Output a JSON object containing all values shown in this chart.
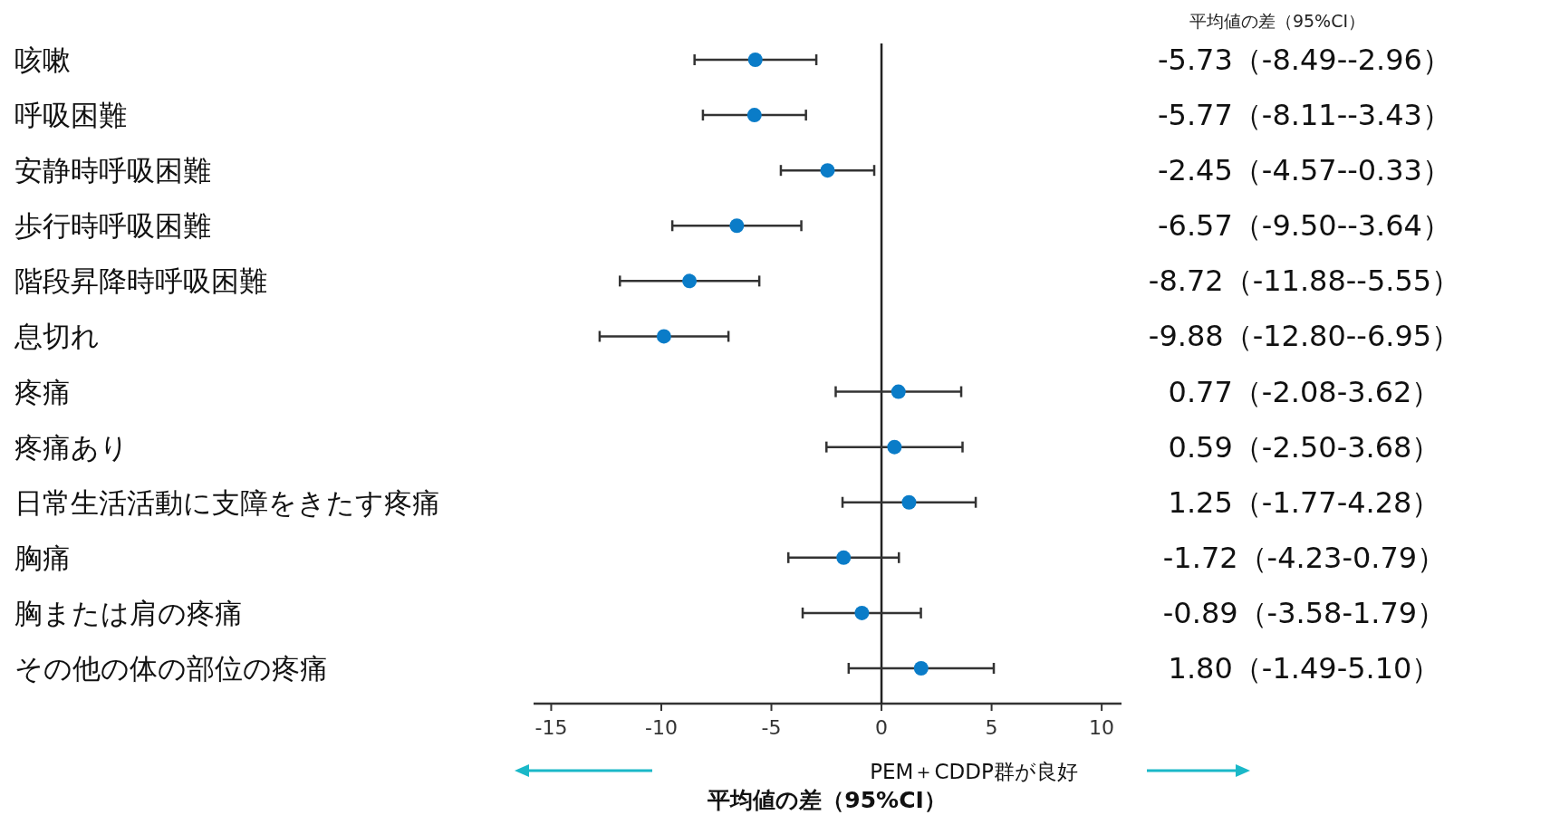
{
  "chart_data": {
    "type": "scatter",
    "orientation": "horizontal",
    "xlabel": "平均値の差（95%CI）",
    "categories": [
      "咳嗽",
      "呼吸困難",
      "安静時呼吸困難",
      "歩行時呼吸困難",
      "階段昇降時呼吸困難",
      "息切れ",
      "疼痛",
      "疼痛あり",
      "日常生活活動に支障をきたす疼痛",
      "胸痛",
      "胸または肩の疼痛",
      "その他の体の部位の疼痛"
    ],
    "series": [
      {
        "color": "#0a7cc8",
        "values": [
          -5.73,
          -5.77,
          -2.45,
          -6.57,
          -8.72,
          -9.88,
          0.77,
          0.59,
          1.25,
          -1.72,
          -0.89,
          1.8
        ],
        "errors": [
          [
            -8.49,
            -2.96
          ],
          [
            -8.11,
            -3.43
          ],
          [
            -4.57,
            -0.33
          ],
          [
            -9.5,
            -3.64
          ],
          [
            -11.88,
            -5.55
          ],
          [
            -12.8,
            -6.95
          ],
          [
            -2.08,
            3.62
          ],
          [
            -2.5,
            3.68
          ],
          [
            -1.77,
            4.28
          ],
          [
            -4.23,
            0.79
          ],
          [
            -3.58,
            1.79
          ],
          [
            -1.49,
            5.1
          ]
        ],
        "value_labels": [
          "-5.73（-8.49--2.96）",
          "-5.77（-8.11--3.43）",
          "-2.45（-4.57--0.33）",
          "-6.57（-9.50--3.64）",
          "-8.72（-11.88--5.55）",
          "-9.88（-12.80--6.95）",
          "0.77（-2.08-3.62）",
          "0.59（-2.50-3.68）",
          "1.25（-1.77-4.28）",
          "-1.72（-4.23-0.79）",
          "-0.89（-3.58-1.79）",
          "1.80（-1.49-5.10）"
        ]
      }
    ],
    "xlim": [
      -15.8,
      10.9
    ],
    "xticks": [
      -15,
      -10,
      -5,
      0,
      5,
      10
    ],
    "ref_lines": [
      {
        "axis": "x",
        "value": 0,
        "color": "#222222"
      }
    ],
    "marker": "circle",
    "annotations": [
      "平均値の差（95%CI）",
      "PEM＋CDDP群が良好"
    ]
  }
}
